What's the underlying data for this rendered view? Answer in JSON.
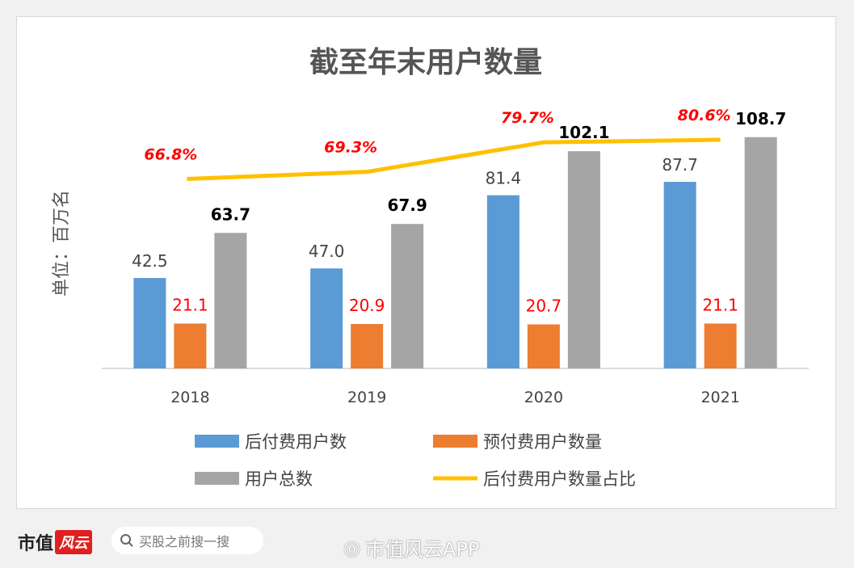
{
  "chart_data": {
    "type": "bar",
    "title": "截至年末用户数量",
    "ylabel": "单位：百万名",
    "categories": [
      "2018",
      "2019",
      "2020",
      "2021"
    ],
    "ylim": [
      0,
      120
    ],
    "y2lim": [
      0,
      90
    ],
    "grid": false,
    "legend_position": "bottom",
    "series": [
      {
        "name": "后付费用户数",
        "type": "bar",
        "color": "#5b9bd5",
        "values": [
          42.5,
          47.0,
          81.4,
          87.7
        ],
        "labels": [
          "42.5",
          "47.0",
          "81.4",
          "87.7"
        ]
      },
      {
        "name": "预付费用户数量",
        "type": "bar",
        "color": "#ed7d31",
        "values": [
          21.1,
          20.9,
          20.7,
          21.1
        ],
        "labels": [
          "21.1",
          "20.9",
          "20.7",
          "21.1"
        ]
      },
      {
        "name": "用户总数",
        "type": "bar",
        "color": "#a5a5a5",
        "values": [
          63.7,
          67.9,
          102.1,
          108.7
        ],
        "labels": [
          "63.7",
          "67.9",
          "102.1",
          "108.7"
        ]
      },
      {
        "name": "后付费用户数量占比",
        "type": "line",
        "color": "#ffc000",
        "axis": "secondary",
        "values": [
          66.8,
          69.3,
          79.7,
          80.6
        ],
        "labels": [
          "66.8%",
          "69.3%",
          "79.7%",
          "80.6%"
        ]
      }
    ]
  },
  "footer": {
    "logo_text": "市值",
    "logo_red_text": "风云",
    "search_placeholder": "买股之前搜一搜",
    "watermark": "市值风云APP"
  }
}
